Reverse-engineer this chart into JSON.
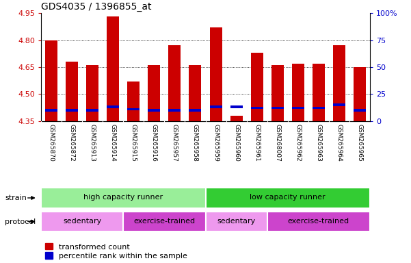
{
  "title": "GDS4035 / 1396855_at",
  "samples": [
    "GSM265870",
    "GSM265872",
    "GSM265913",
    "GSM265914",
    "GSM265915",
    "GSM265916",
    "GSM265957",
    "GSM265958",
    "GSM265959",
    "GSM265960",
    "GSM265961",
    "GSM268007",
    "GSM265962",
    "GSM265963",
    "GSM265964",
    "GSM265965"
  ],
  "transformed_count": [
    4.8,
    4.68,
    4.66,
    4.93,
    4.57,
    4.66,
    4.77,
    4.66,
    4.87,
    4.38,
    4.73,
    4.66,
    4.67,
    4.67,
    4.77,
    4.65
  ],
  "percentile_rank": [
    10,
    10,
    10,
    13,
    11,
    10,
    10,
    10,
    13,
    13,
    12,
    12,
    12,
    12,
    15,
    10
  ],
  "bar_base": 4.35,
  "ylim_left": [
    4.35,
    4.95
  ],
  "ylim_right": [
    0,
    100
  ],
  "right_ticks": [
    0,
    25,
    50,
    75,
    100
  ],
  "left_ticks": [
    4.35,
    4.5,
    4.65,
    4.8,
    4.95
  ],
  "red_color": "#cc0000",
  "blue_color": "#0000cc",
  "strain_labels": [
    {
      "text": "high capacity runner",
      "start": 0,
      "end": 7,
      "color": "#99ee99"
    },
    {
      "text": "low capacity runner",
      "start": 8,
      "end": 15,
      "color": "#33cc33"
    }
  ],
  "protocol_labels": [
    {
      "text": "sedentary",
      "start": 0,
      "end": 3,
      "color": "#ee99ee"
    },
    {
      "text": "exercise-trained",
      "start": 4,
      "end": 7,
      "color": "#cc44cc"
    },
    {
      "text": "sedentary",
      "start": 8,
      "end": 10,
      "color": "#ee99ee"
    },
    {
      "text": "exercise-trained",
      "start": 11,
      "end": 15,
      "color": "#cc44cc"
    }
  ],
  "legend_red": "transformed count",
  "legend_blue": "percentile rank within the sample",
  "bar_width": 0.6,
  "tick_label_color_left": "#cc0000",
  "tick_label_color_right": "#0000cc",
  "xtick_bg_color": "#cccccc"
}
